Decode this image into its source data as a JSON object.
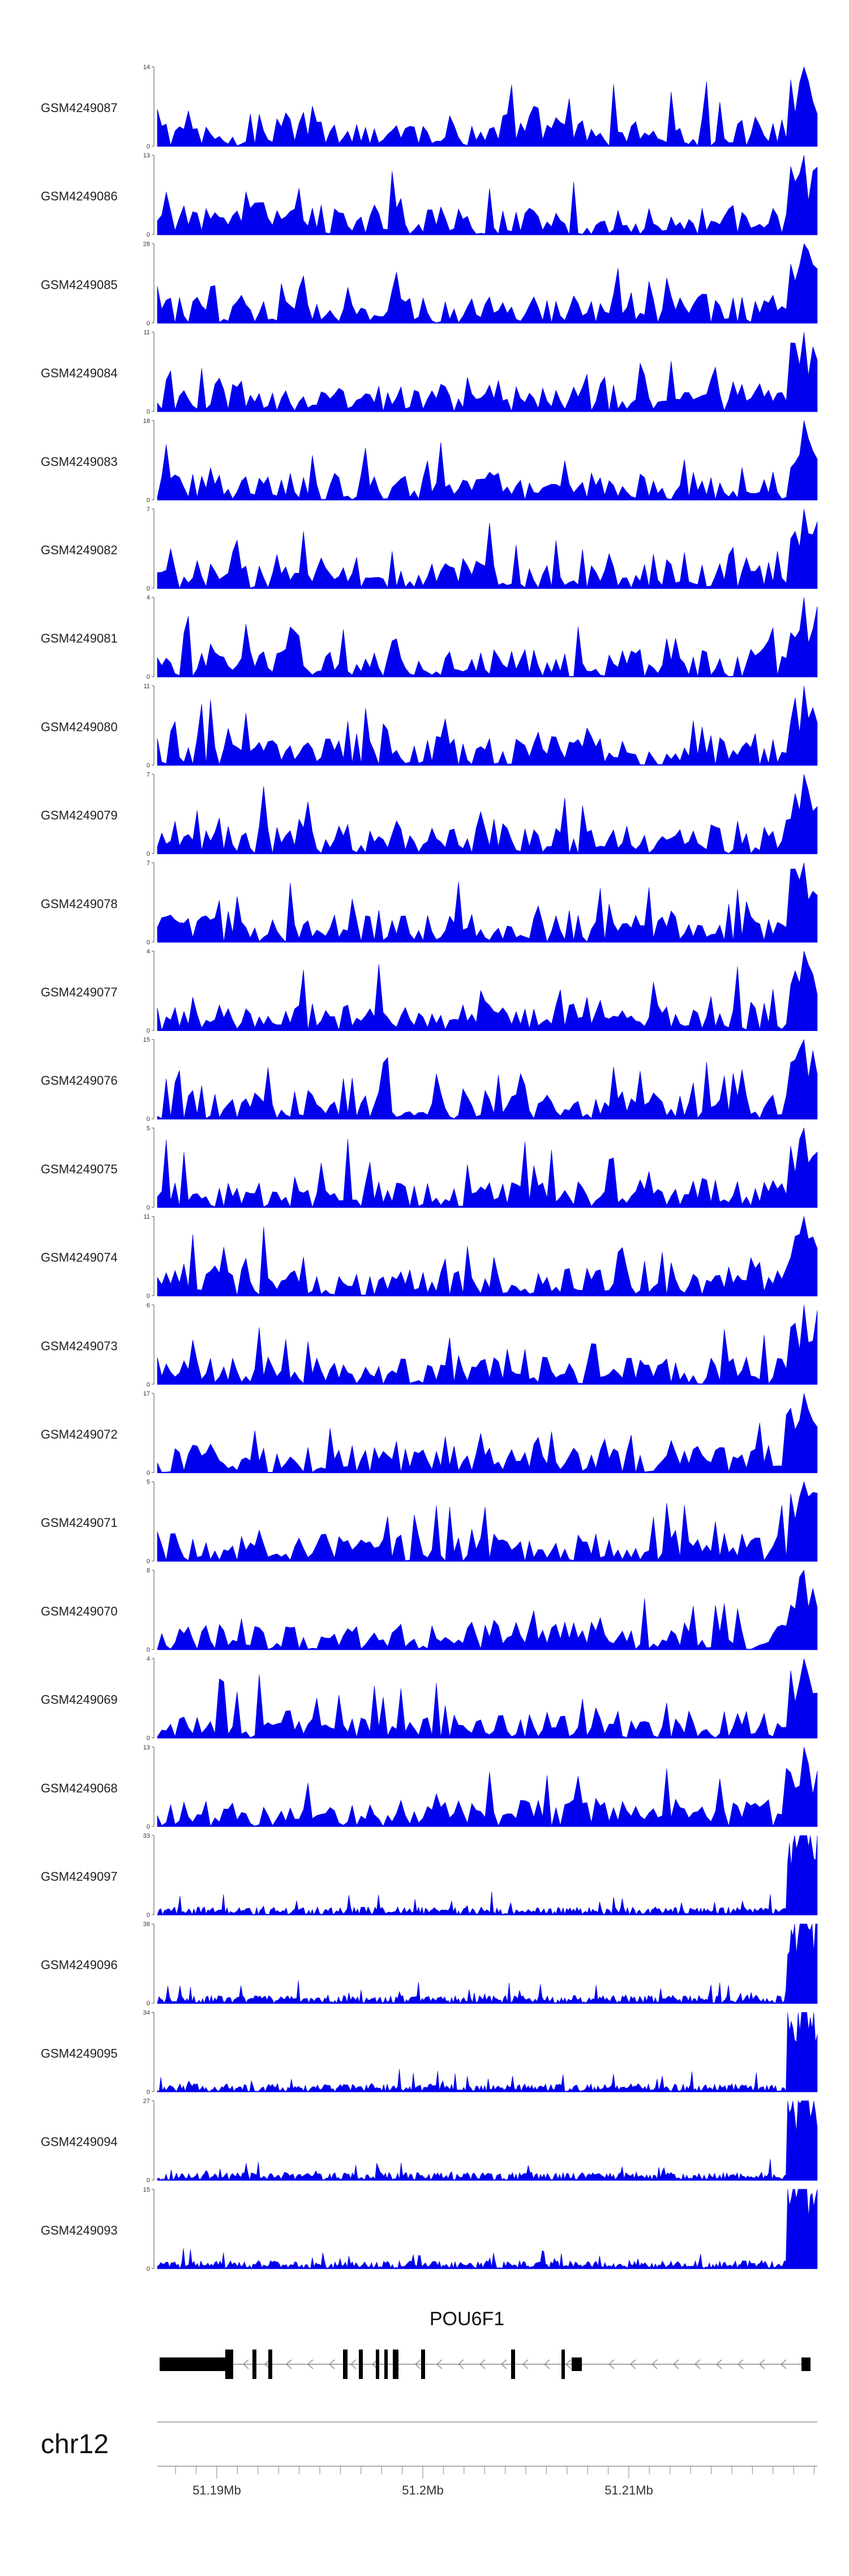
{
  "chart_data": {
    "type": "area",
    "chromosome": "chr12",
    "x_tick_labels": [
      {
        "pos": 51.19,
        "label": "51.19Mb"
      },
      {
        "pos": 51.2,
        "label": "51.2Mb"
      },
      {
        "pos": 51.21,
        "label": "51.21Mb"
      }
    ],
    "series_color": "#0000ee",
    "gene": {
      "name": "POU6F1",
      "strand": "-"
    },
    "tracks": [
      {
        "name": "GSM4249087",
        "ymax": "14",
        "ymin": "0"
      },
      {
        "name": "GSM4249086",
        "ymax": "13",
        "ymin": "0"
      },
      {
        "name": "GSM4249085",
        "ymax": "28",
        "ymin": "0"
      },
      {
        "name": "GSM4249084",
        "ymax": "11",
        "ymin": "0"
      },
      {
        "name": "GSM4249083",
        "ymax": "18",
        "ymin": "0"
      },
      {
        "name": "GSM4249082",
        "ymax": "7",
        "ymin": "0"
      },
      {
        "name": "GSM4249081",
        "ymax": "4",
        "ymin": "0"
      },
      {
        "name": "GSM4249080",
        "ymax": "11",
        "ymin": "0"
      },
      {
        "name": "GSM4249079",
        "ymax": "7",
        "ymin": "0"
      },
      {
        "name": "GSM4249078",
        "ymax": "7",
        "ymin": "0"
      },
      {
        "name": "GSM4249077",
        "ymax": "4",
        "ymin": "0"
      },
      {
        "name": "GSM4249076",
        "ymax": "15",
        "ymin": "0"
      },
      {
        "name": "GSM4249075",
        "ymax": "5",
        "ymin": "0"
      },
      {
        "name": "GSM4249074",
        "ymax": "11",
        "ymin": "0"
      },
      {
        "name": "GSM4249073",
        "ymax": "6",
        "ymin": "0"
      },
      {
        "name": "GSM4249072",
        "ymax": "17",
        "ymin": "0"
      },
      {
        "name": "GSM4249071",
        "ymax": "5",
        "ymin": "0"
      },
      {
        "name": "GSM4249070",
        "ymax": "8",
        "ymin": "0"
      },
      {
        "name": "GSM4249069",
        "ymax": "4",
        "ymin": "0"
      },
      {
        "name": "GSM4249068",
        "ymax": "13",
        "ymin": "0"
      },
      {
        "name": "GSM4249097",
        "ymax": "33",
        "ymin": "0"
      },
      {
        "name": "GSM4249096",
        "ymax": "38",
        "ymin": "0"
      },
      {
        "name": "GSM4249095",
        "ymax": "34",
        "ymin": "0"
      },
      {
        "name": "GSM4249094",
        "ymax": "27",
        "ymin": "0"
      },
      {
        "name": "GSM4249093",
        "ymax": "15",
        "ymin": "0"
      }
    ]
  }
}
